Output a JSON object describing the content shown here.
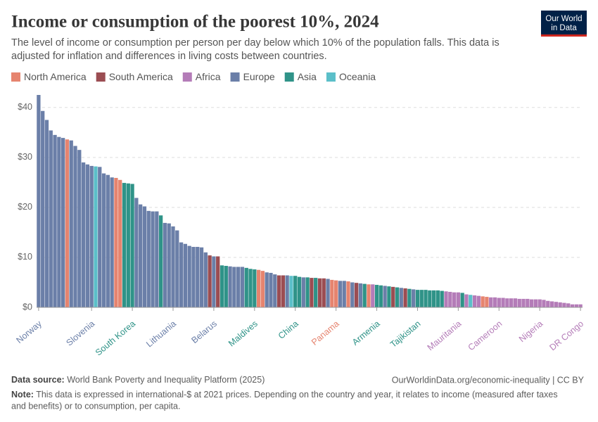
{
  "header": {
    "title": "Income or consumption of the poorest 10%, 2024",
    "subtitle": [
      "The level of income or consumption per person per day below which 10% of the population falls. This data is",
      "adjusted for inflation and differences in living costs between countries."
    ],
    "logo": [
      "Our World",
      "in Data"
    ]
  },
  "chart_data": {
    "type": "bar",
    "series": [
      {
        "name": "North America",
        "color": "#e6846f"
      },
      {
        "name": "South America",
        "color": "#9b4d52"
      },
      {
        "name": "Africa",
        "color": "#b47cb8"
      },
      {
        "name": "Europe",
        "color": "#6b7fa8"
      },
      {
        "name": "Asia",
        "color": "#2f9388"
      },
      {
        "name": "Oceania",
        "color": "#5bbfc9"
      }
    ],
    "categories": [
      "Norway",
      null,
      null,
      null,
      null,
      null,
      null,
      null,
      null,
      null,
      null,
      null,
      null,
      "Slovenia",
      null,
      null,
      null,
      null,
      null,
      null,
      null,
      null,
      null,
      "South Korea",
      null,
      null,
      null,
      null,
      null,
      null,
      null,
      null,
      null,
      "Lithuania",
      null,
      null,
      null,
      null,
      null,
      null,
      null,
      null,
      null,
      "Belarus",
      null,
      null,
      null,
      null,
      null,
      null,
      null,
      null,
      null,
      "Maldives",
      null,
      null,
      null,
      null,
      null,
      null,
      null,
      null,
      null,
      "China",
      null,
      null,
      null,
      null,
      null,
      null,
      null,
      null,
      null,
      "Panama",
      null,
      null,
      null,
      null,
      null,
      null,
      null,
      null,
      null,
      "Armenia",
      null,
      null,
      null,
      null,
      null,
      null,
      null,
      null,
      null,
      "Tajikistan",
      null,
      null,
      null,
      null,
      null,
      null,
      null,
      null,
      null,
      "Mauritania",
      null,
      null,
      null,
      null,
      null,
      null,
      null,
      null,
      null,
      "Cameroon",
      null,
      null,
      null,
      null,
      null,
      null,
      null,
      null,
      null,
      "Nigeria",
      null,
      null,
      null,
      null,
      null,
      null,
      null,
      null,
      null,
      "DR Congo"
    ],
    "values": [
      42.5,
      39.3,
      37.5,
      35.4,
      34.5,
      34.1,
      33.9,
      33.6,
      33.4,
      32.3,
      31.5,
      29.0,
      28.6,
      28.3,
      28.2,
      28.1,
      26.8,
      26.5,
      26.0,
      25.9,
      25.5,
      24.9,
      24.8,
      24.7,
      21.9,
      20.6,
      20.2,
      19.3,
      19.2,
      19.2,
      18.4,
      16.9,
      16.8,
      16.2,
      15.4,
      13.0,
      12.7,
      12.3,
      12.1,
      12.1,
      12.0,
      11.0,
      10.4,
      10.2,
      10.2,
      8.4,
      8.3,
      8.2,
      8.1,
      8.1,
      8.1,
      7.9,
      7.7,
      7.6,
      7.5,
      7.3,
      7.0,
      6.9,
      6.6,
      6.4,
      6.4,
      6.4,
      6.3,
      6.3,
      6.1,
      6.0,
      6.0,
      5.9,
      5.9,
      5.8,
      5.8,
      5.7,
      5.5,
      5.4,
      5.3,
      5.3,
      5.2,
      5.0,
      4.9,
      4.8,
      4.7,
      4.6,
      4.6,
      4.5,
      4.4,
      4.3,
      4.2,
      4.1,
      4.0,
      3.9,
      3.8,
      3.7,
      3.6,
      3.5,
      3.5,
      3.5,
      3.4,
      3.4,
      3.4,
      3.3,
      3.2,
      3.1,
      3.0,
      3.0,
      2.9,
      2.6,
      2.5,
      2.4,
      2.3,
      2.2,
      2.1,
      2.0,
      2.0,
      1.9,
      1.9,
      1.8,
      1.8,
      1.8,
      1.7,
      1.7,
      1.7,
      1.6,
      1.6,
      1.6,
      1.5,
      1.3,
      1.2,
      1.1,
      1.0,
      0.9,
      0.8,
      0.6,
      0.6,
      0.6
    ],
    "colors": [
      "#6b7fa8",
      "#6b7fa8",
      "#6b7fa8",
      "#6b7fa8",
      "#6b7fa8",
      "#6b7fa8",
      "#6b7fa8",
      "#e6846f",
      "#6b7fa8",
      "#6b7fa8",
      "#6b7fa8",
      "#6b7fa8",
      "#6b7fa8",
      "#6b7fa8",
      "#5bbfc9",
      "#6b7fa8",
      "#6b7fa8",
      "#6b7fa8",
      "#6b7fa8",
      "#e6846f",
      "#e6846f",
      "#2f9388",
      "#2f9388",
      "#2f9388",
      "#6b7fa8",
      "#6b7fa8",
      "#6b7fa8",
      "#6b7fa8",
      "#6b7fa8",
      "#6b7fa8",
      "#2f9388",
      "#6b7fa8",
      "#6b7fa8",
      "#6b7fa8",
      "#6b7fa8",
      "#6b7fa8",
      "#6b7fa8",
      "#6b7fa8",
      "#6b7fa8",
      "#6b7fa8",
      "#6b7fa8",
      "#6b7fa8",
      "#9b4d52",
      "#6b7fa8",
      "#9b4d52",
      "#2f9388",
      "#2f9388",
      "#6b7fa8",
      "#6b7fa8",
      "#6b7fa8",
      "#6b7fa8",
      "#2f9388",
      "#2f9388",
      "#2f9388",
      "#e6846f",
      "#e6846f",
      "#6b7fa8",
      "#6b7fa8",
      "#6b7fa8",
      "#9b4d52",
      "#9b4d52",
      "#6b7fa8",
      "#5bbfc9",
      "#2f9388",
      "#2f9388",
      "#6b7fa8",
      "#2f9388",
      "#9b4d52",
      "#2f9388",
      "#9b4d52",
      "#9b4d52",
      "#6b7fa8",
      "#e6846f",
      "#e6846f",
      "#6b7fa8",
      "#6b7fa8",
      "#e6846f",
      "#6b7fa8",
      "#9b4d52",
      "#6b7fa8",
      "#2f9388",
      "#e6846f",
      "#b47cb8",
      "#2f9388",
      "#2f9388",
      "#6b7fa8",
      "#2f9388",
      "#9b4d52",
      "#2f9388",
      "#6b7fa8",
      "#9b4d52",
      "#2f9388",
      "#6b7fa8",
      "#2f9388",
      "#2f9388",
      "#2f9388",
      "#2f9388",
      "#2f9388",
      "#2f9388",
      "#2f9388",
      "#b47cb8",
      "#b47cb8",
      "#b47cb8",
      "#b47cb8",
      "#2f9388",
      "#b47cb8",
      "#5bbfc9",
      "#b47cb8",
      "#b47cb8",
      "#e6846f",
      "#e6846f",
      "#b47cb8",
      "#b47cb8",
      "#b47cb8",
      "#b47cb8",
      "#b47cb8",
      "#b47cb8",
      "#b47cb8",
      "#b47cb8",
      "#b47cb8",
      "#b47cb8",
      "#b47cb8",
      "#b47cb8",
      "#b47cb8",
      "#b47cb8",
      "#b47cb8",
      "#b47cb8",
      "#b47cb8",
      "#b47cb8",
      "#b47cb8",
      "#b47cb8",
      "#b47cb8",
      "#b47cb8",
      "#b47cb8"
    ],
    "ylim": [
      0,
      42.5
    ],
    "yticks": [
      {
        "value": 0,
        "label": "$0"
      },
      {
        "value": 10,
        "label": "$10"
      },
      {
        "value": 20,
        "label": "$20"
      },
      {
        "value": 30,
        "label": "$30"
      },
      {
        "value": 40,
        "label": "$40"
      }
    ],
    "grid": true
  },
  "footer": {
    "source_label": "Data source:",
    "source": "World Bank Poverty and Inequality Platform (2025)",
    "url": "OurWorldinData.org/economic-inequality | CC BY",
    "note_label": "Note:",
    "note": [
      "This data is expressed in international-$ at 2021 prices. Depending on the country and year, it relates to income (measured after taxes",
      "and benefits) or to consumption, per capita."
    ]
  }
}
